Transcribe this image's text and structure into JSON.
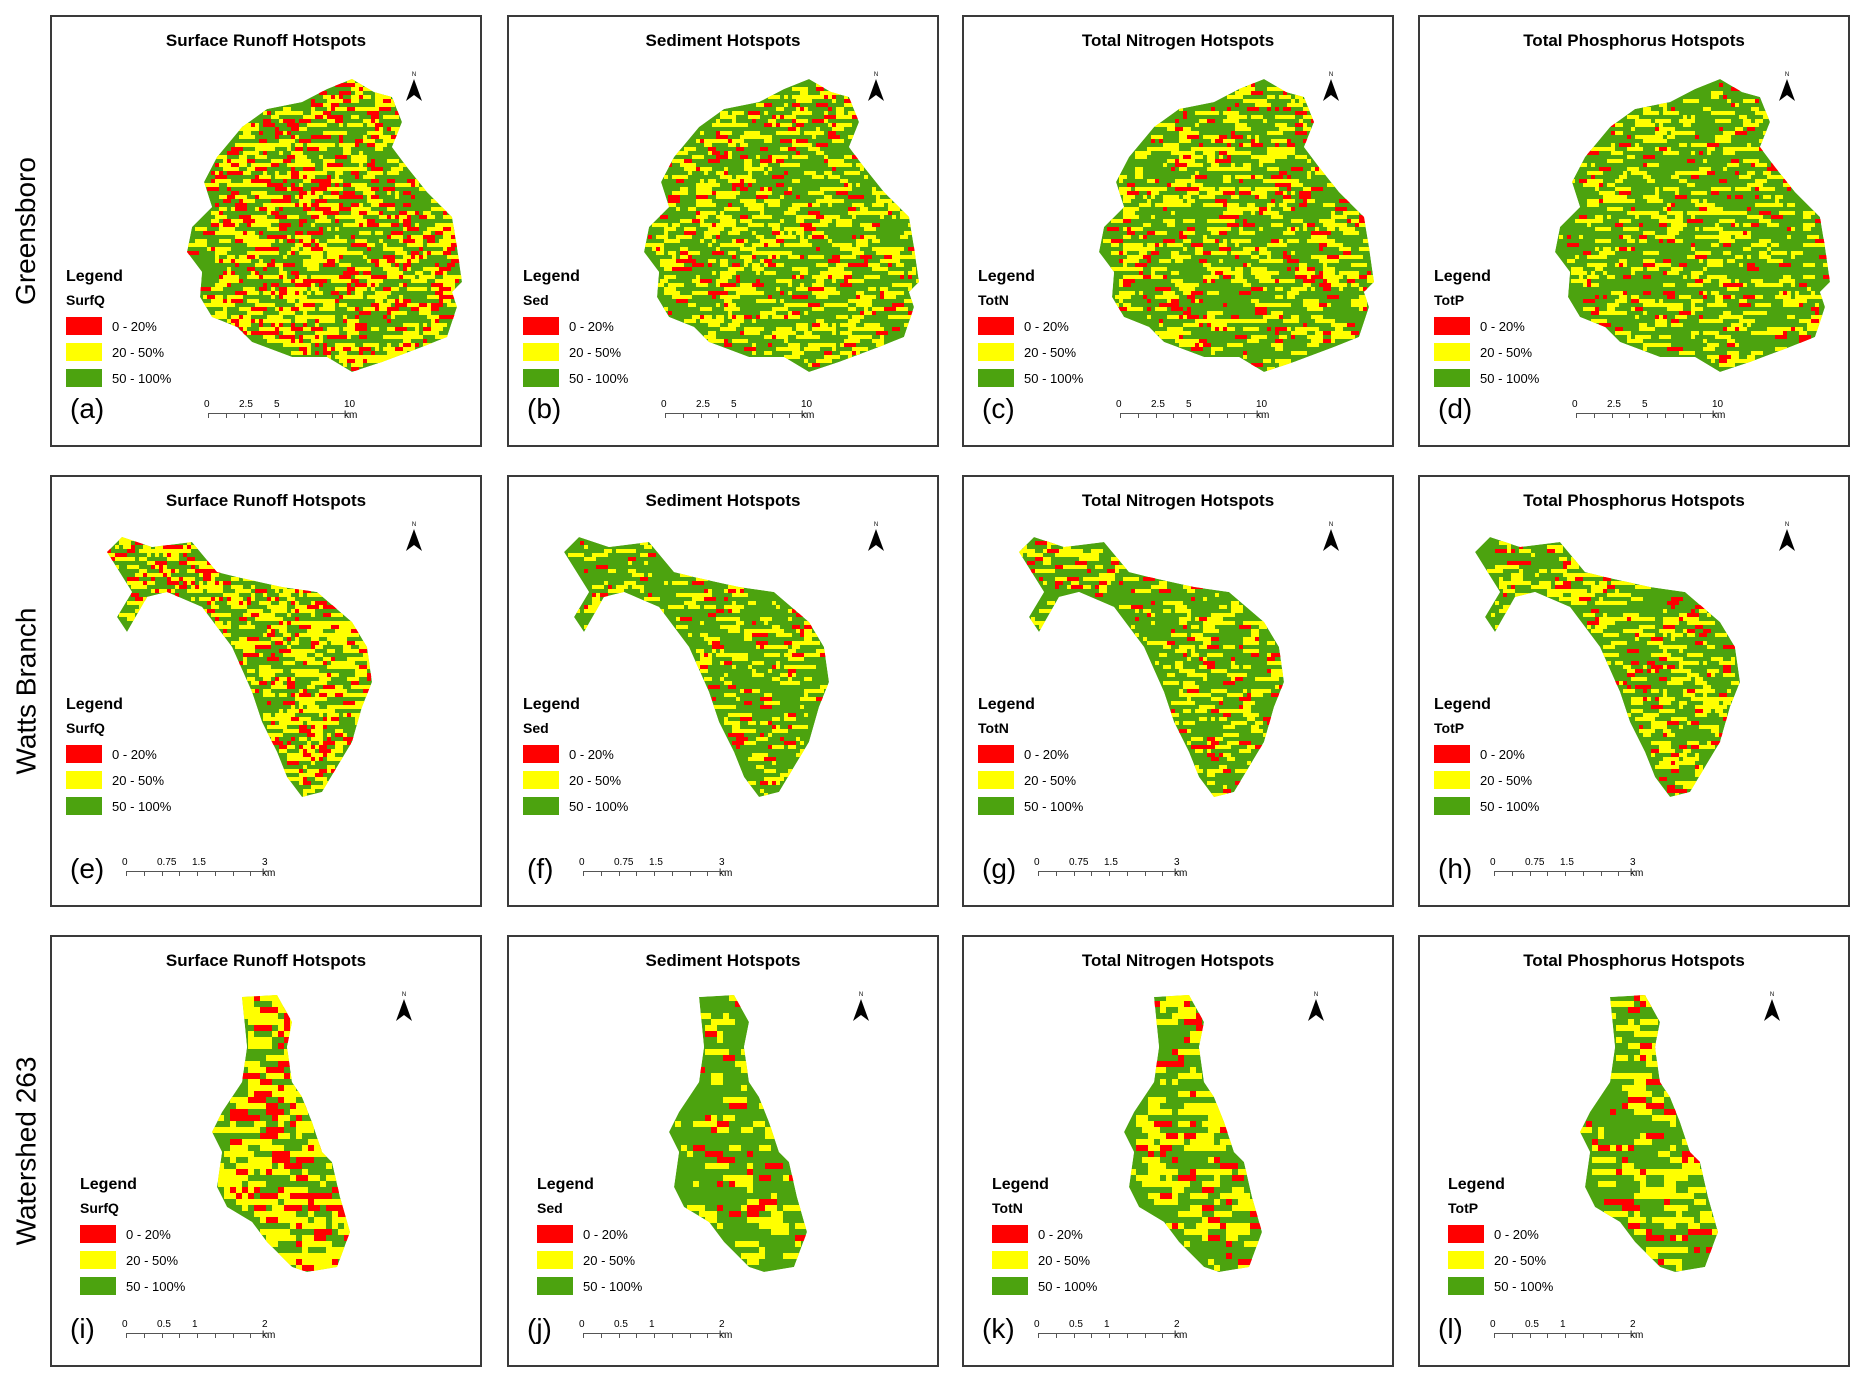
{
  "rows": [
    {
      "label": "Greensboro",
      "scale": [
        "0",
        "2.5",
        "5",
        "10 km"
      ],
      "panels": [
        {
          "letter": "(a)",
          "title": "Surface Runoff Hotspots",
          "field": "SurfQ",
          "seed": 11,
          "red": 0.12,
          "yellow": 0.2
        },
        {
          "letter": "(b)",
          "title": "Sediment Hotspots",
          "field": "Sed",
          "seed": 23,
          "red": 0.05,
          "yellow": 0.16
        },
        {
          "letter": "(c)",
          "title": "Total Nitrogen Hotspots",
          "field": "TotN",
          "seed": 37,
          "red": 0.06,
          "yellow": 0.14
        },
        {
          "letter": "(d)",
          "title": "Total Phosphorus Hotspots",
          "field": "TotP",
          "seed": 41,
          "red": 0.04,
          "yellow": 0.13
        }
      ]
    },
    {
      "label": "Watts Branch",
      "scale": [
        "0",
        "0.75",
        "1.5",
        "3 km"
      ],
      "panels": [
        {
          "letter": "(e)",
          "title": "Surface Runoff Hotspots",
          "field": "SurfQ",
          "seed": 53,
          "red": 0.1,
          "yellow": 0.22
        },
        {
          "letter": "(f)",
          "title": "Sediment Hotspots",
          "field": "Sed",
          "seed": 61,
          "red": 0.04,
          "yellow": 0.13
        },
        {
          "letter": "(g)",
          "title": "Total Nitrogen Hotspots",
          "field": "TotN",
          "seed": 79,
          "red": 0.05,
          "yellow": 0.12
        },
        {
          "letter": "(h)",
          "title": "Total Phosphorus Hotspots",
          "field": "TotP",
          "seed": 83,
          "red": 0.05,
          "yellow": 0.15
        }
      ]
    },
    {
      "label": "Watershed 263",
      "scale": [
        "0",
        "0.5",
        "1",
        "2 km"
      ],
      "panels": [
        {
          "letter": "(i)",
          "title": "Surface Runoff Hotspots",
          "field": "SurfQ",
          "seed": 97,
          "red": 0.12,
          "yellow": 0.24
        },
        {
          "letter": "(j)",
          "title": "Sediment Hotspots",
          "field": "Sed",
          "seed": 101,
          "red": 0.05,
          "yellow": 0.12
        },
        {
          "letter": "(k)",
          "title": "Total Nitrogen Hotspots",
          "field": "TotN",
          "seed": 113,
          "red": 0.08,
          "yellow": 0.18
        },
        {
          "letter": "(l)",
          "title": "Total Phosphorus Hotspots",
          "field": "TotP",
          "seed": 127,
          "red": 0.05,
          "yellow": 0.16
        }
      ]
    }
  ],
  "legend": {
    "title": "Legend",
    "classes": [
      {
        "label": "0 - 20%",
        "color": "#ff0000"
      },
      {
        "label": "20 - 50%",
        "color": "#ffff00"
      },
      {
        "label": "50 - 100%",
        "color": "#4ca30f"
      }
    ]
  },
  "north_label": "N"
}
